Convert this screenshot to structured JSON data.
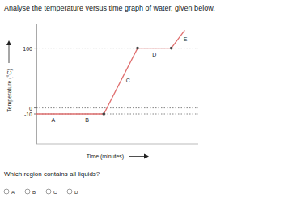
{
  "title": "Analyse the temperature versus time graph of water, given below.",
  "chart_data": {
    "type": "line",
    "x_label": "Time (minutes)",
    "y_label": "Temperature (°C)",
    "x": [
      0,
      2.5,
      5,
      7.5,
      10,
      11
    ],
    "values": [
      -10,
      -10,
      -10,
      100,
      100,
      130
    ],
    "segment_labels": [
      "A",
      "B",
      "C",
      "D",
      "E"
    ],
    "xlim": [
      0,
      12
    ],
    "ylim": [
      -60,
      140
    ],
    "yticks": [
      -10,
      0,
      100
    ],
    "grid": true,
    "tick_labels": "y",
    "color": "#e07070",
    "marker": "circle"
  },
  "question": {
    "text": "Which region contains all liquids?",
    "options": [
      "A",
      "B",
      "C",
      "D"
    ]
  }
}
